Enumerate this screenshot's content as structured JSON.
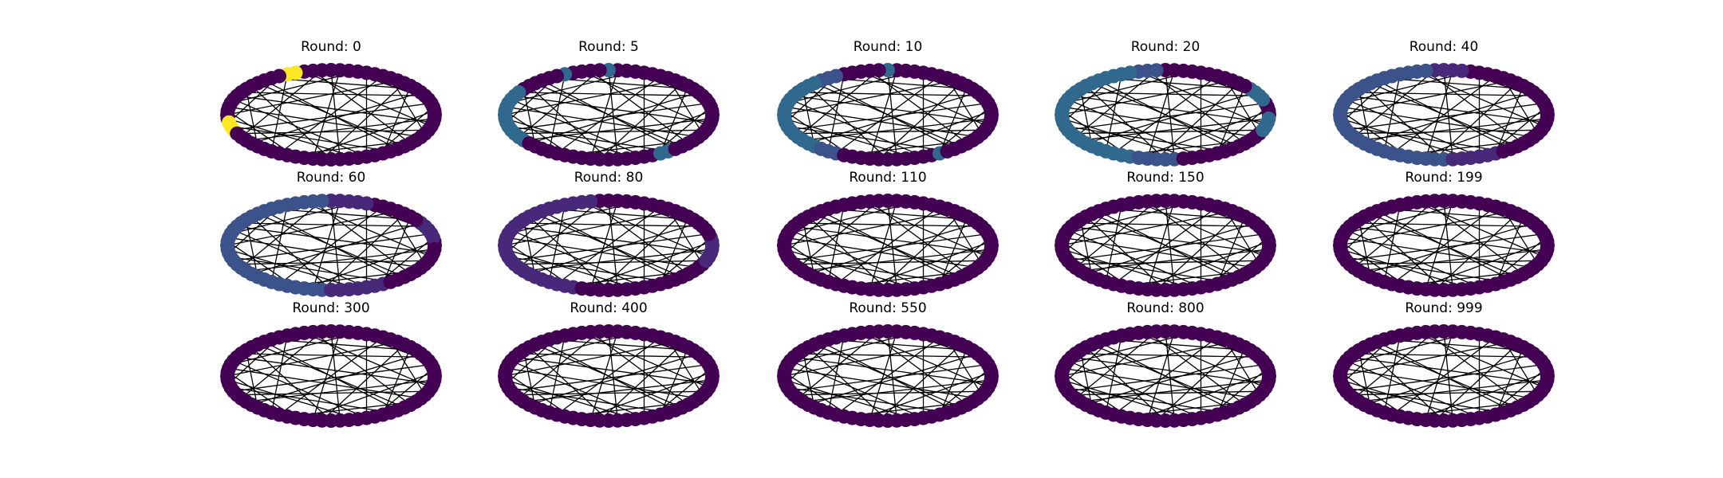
{
  "figure": {
    "panels": [
      {
        "title": "Round: 0",
        "state": "r0"
      },
      {
        "title": "Round: 5",
        "state": "r5"
      },
      {
        "title": "Round: 10",
        "state": "r10"
      },
      {
        "title": "Round: 20",
        "state": "r20"
      },
      {
        "title": "Round: 40",
        "state": "r40"
      },
      {
        "title": "Round: 60",
        "state": "r60"
      },
      {
        "title": "Round: 80",
        "state": "r80"
      },
      {
        "title": "Round: 110",
        "state": "r110"
      },
      {
        "title": "Round: 150",
        "state": "converged"
      },
      {
        "title": "Round: 199",
        "state": "converged"
      },
      {
        "title": "Round: 300",
        "state": "converged"
      },
      {
        "title": "Round: 400",
        "state": "converged"
      },
      {
        "title": "Round: 550",
        "state": "converged"
      },
      {
        "title": "Round: 800",
        "state": "converged"
      },
      {
        "title": "Round: 999",
        "state": "converged"
      }
    ],
    "colors": {
      "node_base": "#440154",
      "node_high": "#fde725",
      "node_mid": "#31688e",
      "node_midlow": "#3b528b",
      "node_low": "#482878",
      "edge": "#000000"
    }
  }
}
